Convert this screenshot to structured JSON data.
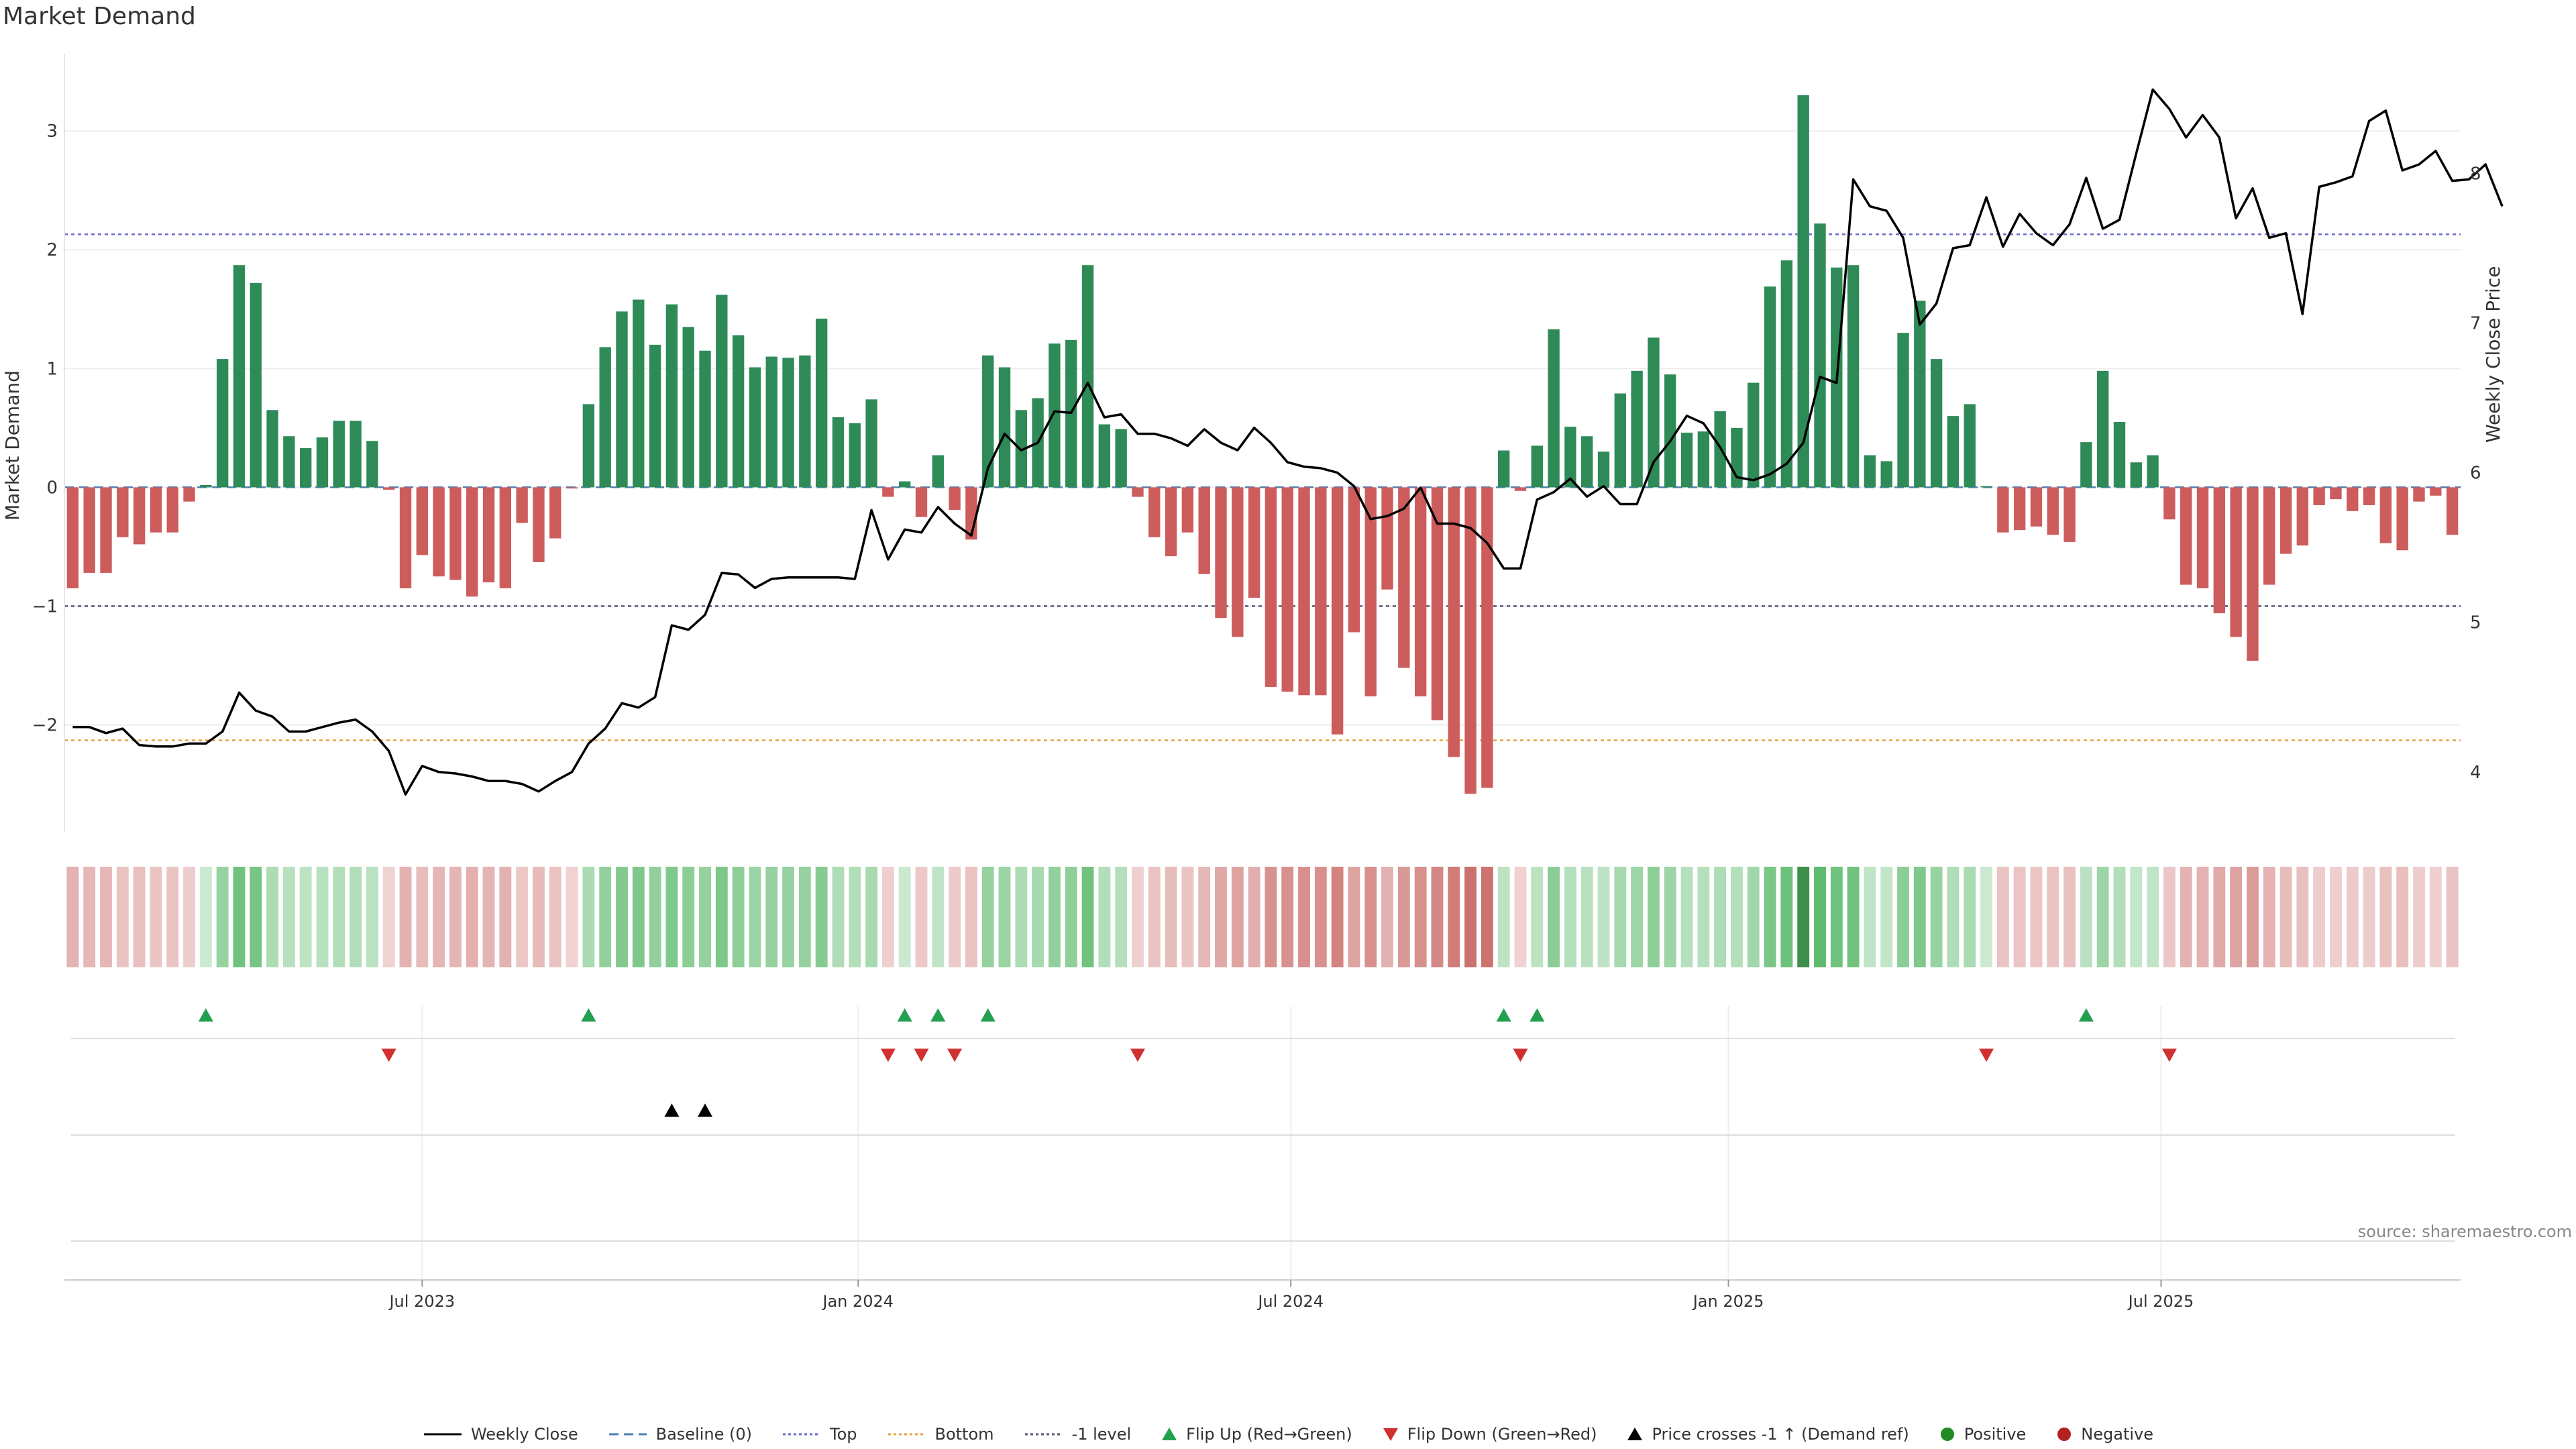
{
  "title": "Market Demand",
  "source": "source: sharemaestro.com",
  "chart_data": {
    "type": "bar+line",
    "title": "Market Demand",
    "ylabel_left": "Market Demand",
    "ylabel_right": "Weekly Close Price",
    "ylim_left": [
      -2.9,
      3.65
    ],
    "ylim_right": [
      3.6,
      8.8
    ],
    "left_ticks": [
      -2,
      -1,
      0,
      1,
      2,
      3
    ],
    "left_tick_labels": [
      "−2",
      "−1",
      "0",
      "1",
      "2",
      "3"
    ],
    "right_ticks": [
      4,
      5,
      6,
      7,
      8
    ],
    "right_tick_labels": [
      "4",
      "5",
      "6",
      "7",
      "8"
    ],
    "reference_lines": {
      "top": 2.13,
      "bottom": -2.13,
      "minus_one": -1.0,
      "baseline": 0
    },
    "x_tick_labels": [
      "Jul 2023",
      "Jan 2024",
      "Jul 2024",
      "Jan 2025",
      "Jul 2025"
    ],
    "x_tick_weeks": [
      21.5,
      47.7,
      73.7,
      100,
      126
    ],
    "demand": [
      -0.85,
      -0.72,
      -0.72,
      -0.42,
      -0.48,
      -0.38,
      -0.38,
      -0.12,
      0.02,
      1.08,
      1.87,
      1.72,
      0.65,
      0.43,
      0.33,
      0.42,
      0.56,
      0.56,
      0.39,
      -0.02,
      -0.85,
      -0.57,
      -0.75,
      -0.78,
      -0.92,
      -0.8,
      -0.85,
      -0.3,
      -0.63,
      -0.43,
      -0.01,
      0.7,
      1.18,
      1.48,
      1.58,
      1.2,
      1.54,
      1.35,
      1.15,
      1.62,
      1.28,
      1.01,
      1.1,
      1.09,
      1.11,
      1.42,
      0.59,
      0.54,
      0.74,
      -0.08,
      0.05,
      -0.25,
      0.27,
      -0.19,
      -0.44,
      1.11,
      1.01,
      0.65,
      0.75,
      1.21,
      1.24,
      1.87,
      0.53,
      0.49,
      -0.08,
      -0.42,
      -0.58,
      -0.38,
      -0.73,
      -1.1,
      -1.26,
      -0.93,
      -1.68,
      -1.72,
      -1.75,
      -1.75,
      -2.08,
      -1.22,
      -1.76,
      -0.86,
      -1.52,
      -1.76,
      -1.96,
      -2.27,
      -2.58,
      -2.53,
      0.31,
      -0.03,
      0.35,
      1.33,
      0.51,
      0.43,
      0.3,
      0.79,
      0.98,
      1.26,
      0.95,
      0.46,
      0.47,
      0.64,
      0.5,
      0.88,
      1.69,
      1.91,
      3.3,
      2.22,
      1.85,
      1.87,
      0.27,
      0.22,
      1.3,
      1.57,
      1.08,
      0.6,
      0.7,
      0.01,
      -0.38,
      -0.36,
      -0.33,
      -0.4,
      -0.46,
      0.38,
      0.98,
      0.55,
      0.21,
      0.27,
      -0.27,
      -0.82,
      -0.85,
      -1.06,
      -1.26,
      -1.46,
      -0.82,
      -0.56,
      -0.49,
      -0.15,
      -0.1,
      -0.2,
      -0.15,
      -0.47,
      -0.53,
      -0.12,
      -0.07,
      -0.4
    ],
    "weekly_close": [
      4.3,
      4.3,
      4.26,
      4.29,
      4.18,
      4.17,
      4.17,
      4.19,
      4.19,
      4.27,
      4.53,
      4.41,
      4.37,
      4.27,
      4.27,
      4.3,
      4.33,
      4.35,
      4.27,
      4.14,
      3.85,
      4.04,
      4,
      3.99,
      3.97,
      3.94,
      3.94,
      3.92,
      3.87,
      3.94,
      4,
      4.19,
      4.29,
      4.46,
      4.43,
      4.5,
      4.98,
      4.95,
      5.05,
      5.33,
      5.32,
      5.23,
      5.29,
      5.3,
      5.3,
      5.3,
      5.3,
      5.29,
      5.75,
      5.42,
      5.62,
      5.6,
      5.77,
      5.66,
      5.58,
      6.03,
      6.26,
      6.15,
      6.2,
      6.41,
      6.4,
      6.6,
      6.37,
      6.39,
      6.26,
      6.26,
      6.23,
      6.18,
      6.29,
      6.2,
      6.15,
      6.3,
      6.2,
      6.07,
      6.04,
      6.03,
      6.0,
      5.91,
      5.69,
      5.71,
      5.76,
      5.9,
      5.66,
      5.66,
      5.63,
      5.53,
      5.36,
      5.36,
      5.82,
      5.87,
      5.96,
      5.84,
      5.91,
      5.79,
      5.79,
      6.07,
      6.21,
      6.38,
      6.33,
      6.17,
      5.97,
      5.95,
      5.99,
      6.06,
      6.2,
      6.64,
      6.6,
      7.96,
      7.78,
      7.75,
      7.57,
      6.99,
      7.13,
      7.5,
      7.52,
      7.84,
      7.51,
      7.73,
      7.6,
      7.52,
      7.66,
      7.97,
      7.63,
      7.69,
      8.13,
      8.56,
      8.43,
      8.24,
      8.39,
      8.24,
      7.7,
      7.9,
      7.57,
      7.6,
      7.06,
      7.91,
      7.94,
      7.98,
      8.35,
      8.42,
      8.02,
      8.06,
      8.15,
      7.95,
      7.96,
      8.06,
      7.78
    ],
    "flip_up_weeks": [
      8,
      31,
      50,
      52,
      55,
      86,
      88,
      121
    ],
    "flip_down_weeks": [
      19,
      49,
      51,
      53,
      64,
      87,
      115,
      126
    ],
    "price_cross_weeks": [
      36,
      38
    ],
    "series_colors": {
      "positive": "#2e8b57",
      "negative": "#cd5c5c",
      "close": "#000000",
      "top": "#6a6ad0",
      "bottom": "#e3a03a",
      "minus_one": "#555577",
      "baseline": "#4a7fb5",
      "flip_up": "#22a050",
      "flip_down": "#d03030",
      "cross": "#000000",
      "pos_dot": "#228b22",
      "neg_dot": "#b22222"
    },
    "legend": [
      {
        "label": "Weekly Close",
        "kind": "line-solid",
        "color": "#000000"
      },
      {
        "label": "Baseline (0)",
        "kind": "line-dashed",
        "color": "#4a7fb5"
      },
      {
        "label": "Top",
        "kind": "line-dotted",
        "color": "#6a6ad0"
      },
      {
        "label": "Bottom",
        "kind": "line-dotted",
        "color": "#e3a03a"
      },
      {
        "label": "-1 level",
        "kind": "line-dotted",
        "color": "#555577"
      },
      {
        "label": "Flip Up (Red→Green)",
        "kind": "tri-up",
        "color": "#22a050"
      },
      {
        "label": "Flip Down (Green→Red)",
        "kind": "tri-down",
        "color": "#d03030"
      },
      {
        "label": "Price crosses -1 ↑ (Demand ref)",
        "kind": "tri-up",
        "color": "#000000"
      },
      {
        "label": "Positive",
        "kind": "dot",
        "color": "#228b22"
      },
      {
        "label": "Negative",
        "kind": "dot",
        "color": "#b22222"
      }
    ]
  }
}
